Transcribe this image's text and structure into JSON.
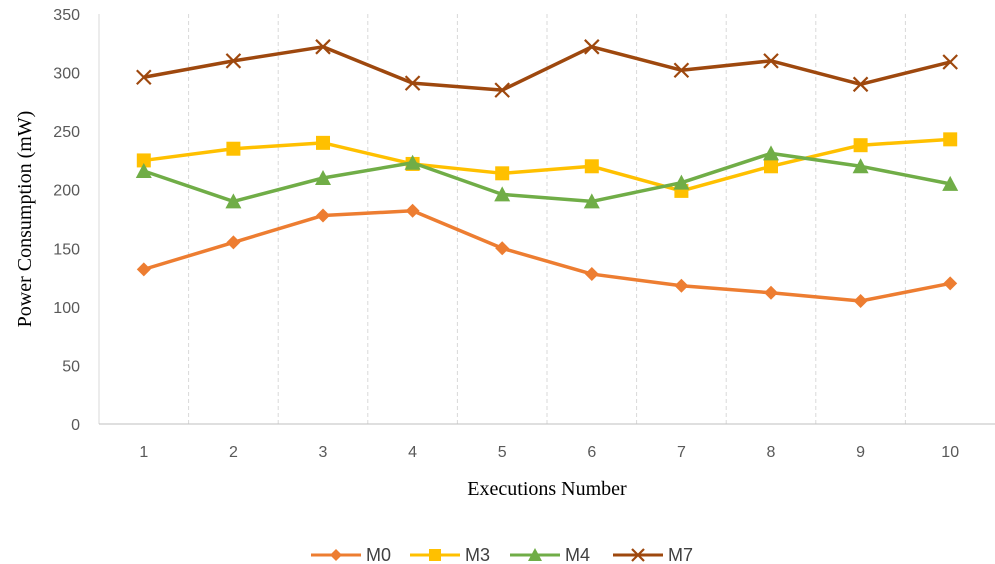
{
  "chart_data": {
    "type": "line",
    "title": "",
    "xlabel": "Executions Number",
    "ylabel": "Power Consumption (mW)",
    "categories": [
      "1",
      "2",
      "3",
      "4",
      "5",
      "6",
      "7",
      "8",
      "9",
      "10"
    ],
    "ylim": [
      0,
      350
    ],
    "yticks": [
      0,
      50,
      100,
      150,
      200,
      250,
      300,
      350
    ],
    "grid": "vertical dashed",
    "legend_position": "bottom",
    "series": [
      {
        "name": "M0",
        "color": "#ED7D31",
        "marker": "diamond",
        "values": [
          132,
          155,
          178,
          182,
          150,
          128,
          118,
          112,
          105,
          120
        ]
      },
      {
        "name": "M3",
        "color": "#FFC000",
        "marker": "square",
        "values": [
          225,
          235,
          240,
          222,
          214,
          220,
          199,
          220,
          238,
          243
        ]
      },
      {
        "name": "M4",
        "color": "#70AD47",
        "marker": "triangle",
        "values": [
          216,
          190,
          210,
          223,
          196,
          190,
          206,
          231,
          220,
          205
        ]
      },
      {
        "name": "M7",
        "color": "#9E480E",
        "marker": "x",
        "values": [
          296,
          310,
          322,
          291,
          285,
          322,
          302,
          310,
          290,
          309
        ]
      }
    ]
  }
}
